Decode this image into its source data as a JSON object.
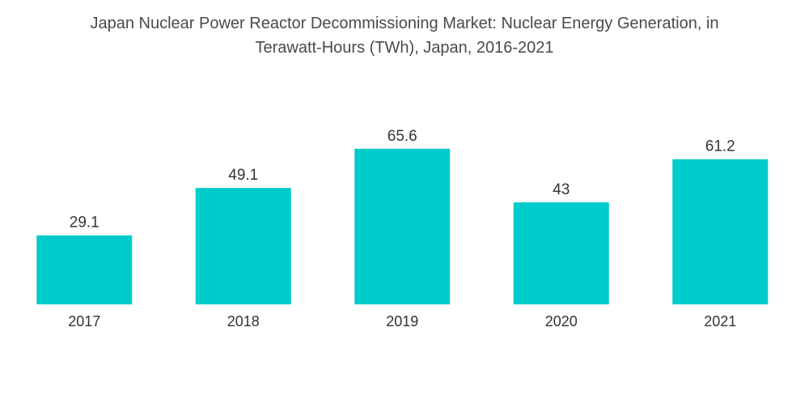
{
  "chart_data": {
    "type": "bar",
    "title_line1": "Japan Nuclear Power Reactor Decommissioning Market: Nuclear Energy Generation, in",
    "title_line2": "Terawatt-Hours (TWh), Japan, 2016-2021",
    "categories": [
      "2017",
      "2018",
      "2019",
      "2020",
      "2021"
    ],
    "values": [
      29.1,
      49.1,
      65.6,
      43,
      61.2
    ],
    "value_labels": [
      "29.1",
      "49.1",
      "65.6",
      "43",
      "61.2"
    ],
    "xlabel": "",
    "ylabel": "",
    "ylim": [
      0,
      70
    ],
    "grid": false,
    "bar_color": "#00cccc"
  }
}
